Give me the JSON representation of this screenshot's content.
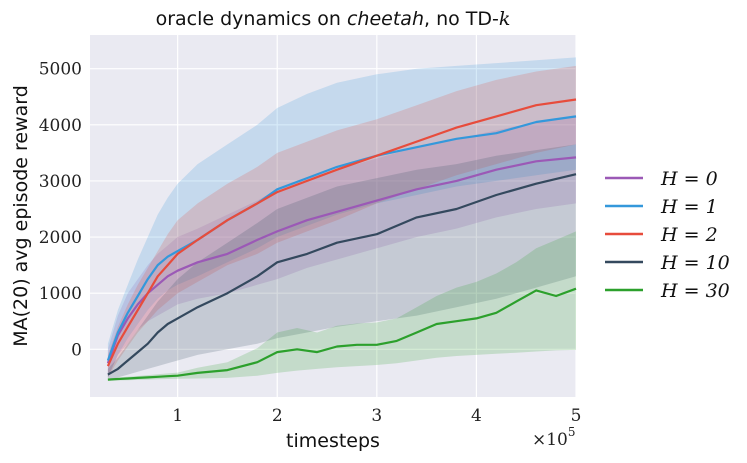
{
  "chart_data": {
    "type": "line",
    "title_prefix": "oracle dynamics on ",
    "title_emph": "cheetah",
    "title_suffix": ", no TD-",
    "title_k": "k",
    "xlabel": "timesteps",
    "ylabel": "MA(20) avg episode reward",
    "x_multiplier": "×10",
    "x_multiplier_exp": "5",
    "xlim": [
      0.12,
      5.0
    ],
    "ylim": [
      -850,
      5600
    ],
    "xticks": [
      1,
      2,
      3,
      4,
      5
    ],
    "yticks": [
      0,
      1000,
      2000,
      3000,
      4000,
      5000
    ],
    "legend_position": "right",
    "series": [
      {
        "name": "H = 0",
        "color": "#9b59b6",
        "x": [
          0.3,
          0.4,
          0.5,
          0.6,
          0.7,
          0.8,
          0.9,
          1.0,
          1.2,
          1.5,
          1.8,
          2.0,
          2.3,
          2.6,
          3.0,
          3.4,
          3.8,
          4.2,
          4.6,
          5.0
        ],
        "y": [
          -250,
          250,
          550,
          800,
          1000,
          1150,
          1300,
          1400,
          1550,
          1700,
          1950,
          2100,
          2300,
          2450,
          2650,
          2850,
          3000,
          3200,
          3350,
          3420
        ],
        "lower": [
          -500,
          -100,
          100,
          350,
          500,
          600,
          700,
          800,
          900,
          1000,
          1150,
          1250,
          1450,
          1600,
          1800,
          2000,
          2150,
          2350,
          2500,
          2600
        ],
        "upper": [
          0,
          600,
          1000,
          1250,
          1500,
          1700,
          1850,
          2000,
          2150,
          2400,
          2650,
          2850,
          3050,
          3200,
          3400,
          3600,
          3750,
          3900,
          4050,
          4150
        ]
      },
      {
        "name": "H = 1",
        "color": "#3498db",
        "x": [
          0.3,
          0.4,
          0.5,
          0.6,
          0.7,
          0.8,
          0.9,
          1.0,
          1.2,
          1.5,
          1.8,
          2.0,
          2.3,
          2.6,
          3.0,
          3.4,
          3.8,
          4.2,
          4.6,
          5.0
        ],
        "y": [
          -200,
          300,
          650,
          950,
          1250,
          1500,
          1650,
          1750,
          1950,
          2300,
          2600,
          2850,
          3050,
          3250,
          3450,
          3600,
          3750,
          3850,
          4050,
          4150
        ],
        "lower": [
          -500,
          -100,
          200,
          450,
          700,
          900,
          1050,
          1150,
          1300,
          1550,
          1800,
          2000,
          2200,
          2400,
          2600,
          2750,
          2900,
          3000,
          3100,
          3200
        ],
        "upper": [
          100,
          700,
          1150,
          1600,
          2000,
          2400,
          2700,
          2950,
          3300,
          3650,
          4000,
          4300,
          4550,
          4750,
          4900,
          5000,
          5050,
          5100,
          5150,
          5200
        ]
      },
      {
        "name": "H = 2",
        "color": "#e74c3c",
        "x": [
          0.3,
          0.4,
          0.5,
          0.6,
          0.7,
          0.8,
          0.9,
          1.0,
          1.2,
          1.5,
          1.8,
          2.0,
          2.3,
          2.6,
          3.0,
          3.4,
          3.8,
          4.2,
          4.6,
          5.0
        ],
        "y": [
          -300,
          100,
          400,
          700,
          1000,
          1300,
          1500,
          1700,
          1950,
          2300,
          2600,
          2800,
          3000,
          3200,
          3450,
          3700,
          3950,
          4150,
          4350,
          4450
        ],
        "lower": [
          -500,
          -200,
          50,
          300,
          500,
          700,
          850,
          1000,
          1200,
          1500,
          1700,
          1900,
          2100,
          2300,
          2600,
          2850,
          3100,
          3300,
          3500,
          3650
        ],
        "upper": [
          -100,
          400,
          800,
          1150,
          1450,
          1750,
          2050,
          2300,
          2600,
          2950,
          3250,
          3500,
          3700,
          3900,
          4100,
          4350,
          4600,
          4800,
          4950,
          5050
        ]
      },
      {
        "name": "H = 10",
        "color": "#34495e",
        "x": [
          0.3,
          0.4,
          0.5,
          0.6,
          0.7,
          0.8,
          0.9,
          1.0,
          1.2,
          1.5,
          1.8,
          2.0,
          2.3,
          2.6,
          3.0,
          3.4,
          3.8,
          4.2,
          4.6,
          5.0
        ],
        "y": [
          -450,
          -350,
          -200,
          -50,
          100,
          300,
          450,
          550,
          750,
          1000,
          1300,
          1550,
          1700,
          1900,
          2050,
          2350,
          2500,
          2750,
          2950,
          3120
        ],
        "lower": [
          -550,
          -500,
          -450,
          -400,
          -350,
          -300,
          -250,
          -200,
          -100,
          0,
          100,
          200,
          300,
          400,
          500,
          600,
          750,
          900,
          1100,
          1300
        ],
        "upper": [
          -350,
          -150,
          100,
          350,
          600,
          850,
          1050,
          1250,
          1550,
          1900,
          2250,
          2500,
          2700,
          2900,
          3050,
          3200,
          3300,
          3450,
          3550,
          3650
        ]
      },
      {
        "name": "H = 30",
        "color": "#2ca02c",
        "x": [
          0.3,
          0.4,
          0.5,
          0.6,
          0.7,
          0.8,
          0.9,
          1.0,
          1.2,
          1.5,
          1.8,
          2.0,
          2.2,
          2.4,
          2.6,
          2.8,
          3.0,
          3.2,
          3.4,
          3.6,
          3.8,
          4.0,
          4.2,
          4.4,
          4.6,
          4.8,
          5.0
        ],
        "y": [
          -540,
          -530,
          -520,
          -510,
          -500,
          -490,
          -480,
          -470,
          -420,
          -370,
          -230,
          -50,
          0,
          -50,
          50,
          80,
          80,
          150,
          300,
          450,
          500,
          550,
          650,
          850,
          1050,
          950,
          1080
        ],
        "lower": [
          -560,
          -555,
          -550,
          -545,
          -540,
          -535,
          -530,
          -525,
          -520,
          -510,
          -470,
          -420,
          -380,
          -350,
          -320,
          -300,
          -280,
          -250,
          -200,
          -150,
          -120,
          -100,
          -80,
          -60,
          -40,
          -20,
          -10
        ],
        "upper": [
          -520,
          -505,
          -490,
          -475,
          -460,
          -445,
          -430,
          -415,
          -330,
          -230,
          20,
          300,
          380,
          300,
          420,
          460,
          480,
          550,
          750,
          950,
          1100,
          1200,
          1350,
          1550,
          1800,
          1950,
          2100
        ]
      }
    ]
  }
}
